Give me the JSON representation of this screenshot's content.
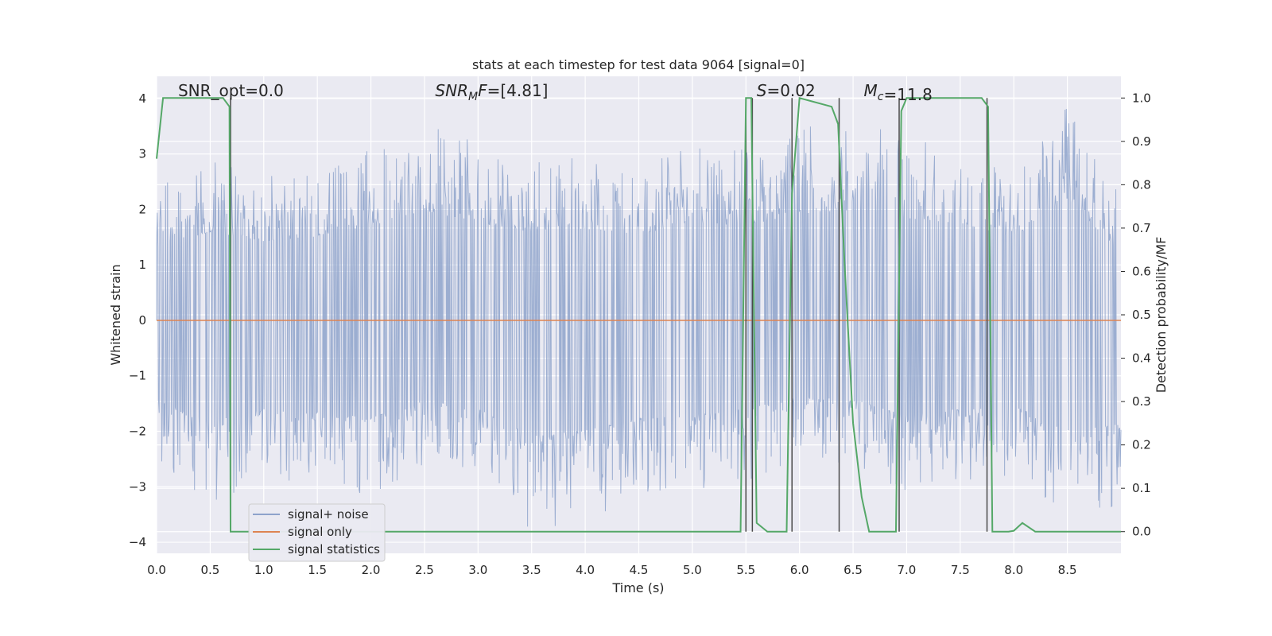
{
  "chart_data": {
    "type": "line",
    "title": "stats at each timestep for test data 9064 [signal=0]",
    "xlabel": "Time (s)",
    "ylabel": "Whitened strain",
    "y2label": "Detection probability/MF",
    "xlim": [
      0.0,
      9.0
    ],
    "ylim": [
      -4.2,
      4.4
    ],
    "y2lim": [
      -0.05,
      1.05
    ],
    "x_ticks": [
      0.0,
      0.5,
      1.0,
      1.5,
      2.0,
      2.5,
      3.0,
      3.5,
      4.0,
      4.5,
      5.0,
      5.5,
      6.0,
      6.5,
      7.0,
      7.5,
      8.0,
      8.5
    ],
    "x_tick_labels": [
      "0.0",
      "0.5",
      "1.0",
      "1.5",
      "2.0",
      "2.5",
      "3.0",
      "3.5",
      "4.0",
      "4.5",
      "5.0",
      "5.5",
      "6.0",
      "6.5",
      "7.0",
      "7.5",
      "8.0",
      "8.5"
    ],
    "y_ticks": [
      4,
      3,
      2,
      1,
      0,
      -1,
      -2,
      -3,
      -4
    ],
    "y_tick_labels": [
      "4",
      "3",
      "2",
      "1",
      "0",
      "−1",
      "−2",
      "−3",
      "−4"
    ],
    "y2_ticks": [
      1.0,
      0.9,
      0.8,
      0.7,
      0.6,
      0.5,
      0.4,
      0.3,
      0.2,
      0.1,
      0.0
    ],
    "y2_tick_labels": [
      "1.0",
      "0.9",
      "0.8",
      "0.7",
      "0.6",
      "0.5",
      "0.4",
      "0.3",
      "0.2",
      "0.1",
      "0.0"
    ],
    "grid": true,
    "legend_position": "lower-left",
    "legend": [
      "signal+ noise",
      "signal only",
      "signal statistics"
    ],
    "annotations": [
      {
        "label": "SNR_opt",
        "value": "=0.0",
        "x": 0.2
      },
      {
        "label": "SNR",
        "sub": "M",
        "after": "F",
        "value": "=[4.81]",
        "x": 2.6
      },
      {
        "label": "S",
        "value": "=0.02",
        "x": 5.6
      },
      {
        "label": "M",
        "sub": "c",
        "value": "=11.8",
        "x": 6.6
      }
    ],
    "noise_envelope": {
      "x": [
        0.0,
        0.5,
        1.0,
        1.5,
        2.0,
        2.5,
        3.0,
        3.5,
        4.0,
        4.5,
        5.0,
        5.5,
        6.0,
        6.5,
        7.0,
        7.5,
        8.0,
        8.5,
        9.0
      ],
      "upper": [
        2.4,
        2.9,
        2.6,
        2.7,
        3.1,
        3.6,
        3.2,
        2.9,
        3.0,
        2.8,
        3.2,
        3.1,
        3.5,
        3.6,
        3.3,
        3.2,
        2.7,
        4.0,
        2.2
      ],
      "lower": [
        -2.6,
        -3.3,
        -2.9,
        -3.0,
        -3.2,
        -2.6,
        -2.9,
        -3.8,
        -3.6,
        -3.2,
        -3.1,
        -2.9,
        -2.5,
        -2.6,
        -3.1,
        -2.9,
        -2.8,
        -3.6,
        -3.4
      ]
    },
    "series": [
      {
        "name": "signal statistics",
        "axis": "right",
        "color": "#55a868",
        "x": [
          0.0,
          0.06,
          0.12,
          0.3,
          0.5,
          0.62,
          0.68,
          0.69,
          0.75,
          0.85,
          1.0,
          2.0,
          3.0,
          4.0,
          5.0,
          5.45,
          5.5,
          5.55,
          5.6,
          5.7,
          5.88,
          5.93,
          6.0,
          6.3,
          6.36,
          6.42,
          6.5,
          6.58,
          6.65,
          6.72,
          6.85,
          6.9,
          6.95,
          7.0,
          7.5,
          7.7,
          7.76,
          7.8,
          7.86,
          7.95,
          8.0,
          8.08,
          8.2,
          8.5,
          9.0
        ],
        "values": [
          0.86,
          1.0,
          1.0,
          1.0,
          1.0,
          1.0,
          0.98,
          0.0,
          0.0,
          0.0,
          0.0,
          0.0,
          0.0,
          0.0,
          0.0,
          0.0,
          1.0,
          1.0,
          0.02,
          0.0,
          0.0,
          0.78,
          1.0,
          0.98,
          0.94,
          0.62,
          0.25,
          0.08,
          0.0,
          0.0,
          0.0,
          0.0,
          0.97,
          1.0,
          1.0,
          1.0,
          0.98,
          0.0,
          0.0,
          0.0,
          0.002,
          0.02,
          0.0,
          0.0,
          0.0
        ]
      },
      {
        "name": "signal only",
        "axis": "left",
        "color": "#dd8452",
        "x": [
          0.0,
          9.0
        ],
        "values": [
          0.0,
          0.0
        ]
      }
    ],
    "vertical_markers": [
      0.69,
      5.5,
      5.56,
      5.93,
      6.37,
      6.93,
      7.75
    ],
    "colors": {
      "background": "#eaeaf2",
      "grid": "#ffffff",
      "noise": "#8ea3cb",
      "signal_only": "#dd8452",
      "statistics": "#55a868",
      "markers": "#4a4a4a"
    }
  }
}
